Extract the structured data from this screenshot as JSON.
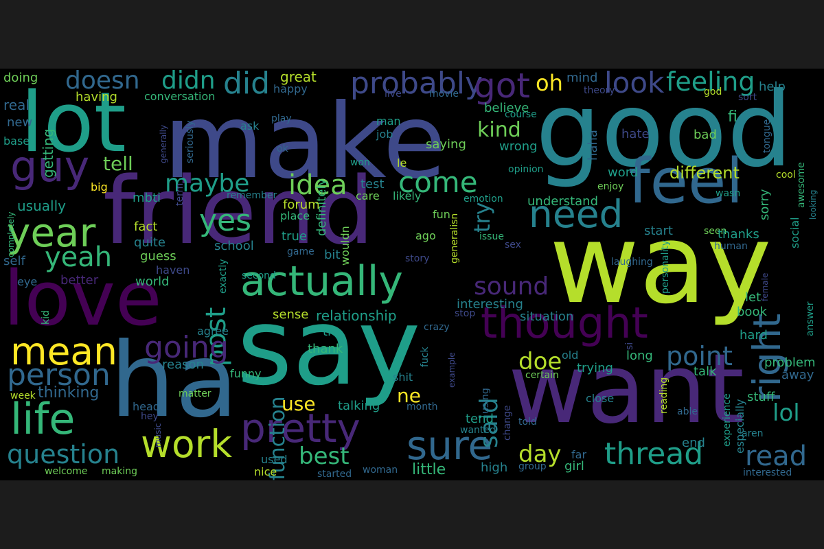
{
  "palette": {
    "page_background": "#1c1c1c",
    "cloud_background": "#000000",
    "colormap": [
      "#440154",
      "#482878",
      "#3e4989",
      "#31688e",
      "#26828e",
      "#1f9e89",
      "#35b779",
      "#6ece58",
      "#b5de2b",
      "#fde725"
    ]
  },
  "words": {
    "make": "make",
    "good": "good",
    "friend": "friend",
    "way": "way",
    "say": "say",
    "want": "want",
    "ha": "ha",
    "lot": "lot",
    "love": "love",
    "feel": "feel",
    "life": "life",
    "thought": "thought",
    "pretty": "pretty",
    "actually": "actually",
    "year": "year",
    "work": "work",
    "sure": "sure",
    "right": "right",
    "mean": "mean",
    "person": "person",
    "need": "need",
    "guy": "guy",
    "thread": "thread",
    "question": "question",
    "probably": "probably",
    "got": "got",
    "look": "look",
    "feeling": "feeling",
    "did": "did",
    "doesn": "doesn",
    "didn": "didn",
    "idea": "idea",
    "come": "come",
    "maybe": "maybe",
    "yes": "yes",
    "post": "post",
    "going": "going",
    "yeah": "yeah",
    "point": "point",
    "sound": "sound",
    "read": "read",
    "said": "said",
    "function": "function",
    "lol": "lol",
    "day": "day",
    "best": "best",
    "kind": "kind",
    "doe": "doe",
    "tell": "tell",
    "use": "use",
    "ne": "ne",
    "oh": "oh",
    "try": "try",
    "different": "different",
    "understand": "understand",
    "interesting": "interesting",
    "relationship": "relationship",
    "usually": "usually",
    "thinking": "thinking",
    "talking": "talking",
    "little": "little",
    "doing": "doing",
    "great": "great",
    "conversation": "conversation",
    "happy": "happy",
    "having": "having",
    "real": "real",
    "new": "new",
    "getting": "getting",
    "based": "based",
    "generally": "generally",
    "seriously": "seriously",
    "ask": "ask",
    "play": "play",
    "live": "live",
    "movie": "movie",
    "mind": "mind",
    "theory": "theory",
    "god": "god",
    "help": "help",
    "sort": "sort",
    "course": "course",
    "believe": "believe",
    "man": "man",
    "job": "job",
    "saying": "saying",
    "wrong": "wrong",
    "hate": "hate",
    "bad": "bad",
    "haha": "haha",
    "tongue": "tongue",
    "definitely": "definitely",
    "ok": "ok",
    "won": "won",
    "le": "le",
    "opinion": "opinion",
    "fi": "fi",
    "word": "word",
    "cool": "cool",
    "awesome": "awesome",
    "looking": "looking",
    "completely": "completely",
    "big": "big",
    "term": "term",
    "remember": "remember",
    "mbti": "mbti",
    "test": "test",
    "care": "care",
    "likely": "likely",
    "emotion": "emotion",
    "enjoy": "enjoy",
    "wasn": "wasn",
    "sorry": "sorry",
    "forum": "forum",
    "fun": "fun",
    "place": "place",
    "fact": "fact",
    "quite": "quite",
    "true": "true",
    "generalisn": "generalisn",
    "ago": "ago",
    "issue": "issue",
    "sex": "sex",
    "start": "start",
    "seen": "seen",
    "thanks": "thanks",
    "social": "social",
    "human": "human",
    "self": "self",
    "school": "school",
    "guess": "guess",
    "haven": "haven",
    "bit": "bit",
    "wouldn": "wouldn",
    "game": "game",
    "story": "story",
    "laughing": "laughing",
    "personality": "personality",
    "eye": "eye",
    "better": "better",
    "world": "world",
    "exactly": "exactly",
    "second": "second",
    "stop": "stop",
    "situation": "situation",
    "let": "let",
    "female": "female",
    "book": "book",
    "kid": "kid",
    "agree": "agree",
    "sense": "sense",
    "ti": "ti",
    "crazy": "crazy",
    "answer": "answer",
    "hard": "hard",
    "si": "si",
    "thank": "thank",
    "reason": "reason",
    "funny": "funny",
    "fuck": "fuck",
    "example": "example",
    "old": "old",
    "trying": "trying",
    "long": "long",
    "problem": "problem",
    "away": "away",
    "certain": "certain",
    "shit": "shit",
    "week": "week",
    "matter": "matter",
    "head": "head",
    "hey": "hey",
    "music": "music",
    "using": "using",
    "month": "month",
    "change": "change",
    "told": "told",
    "tend": "tend",
    "wanted": "wanted",
    "close": "close",
    "talk": "talk",
    "reading": "reading",
    "experience": "experience",
    "especially": "especially",
    "end": "end",
    "able": "able",
    "aren": "aren",
    "stuff": "stuff",
    "welcome": "welcome",
    "making": "making",
    "used": "used",
    "nice": "nice",
    "started": "started",
    "woman": "woman",
    "high": "high",
    "group": "group",
    "girl": "girl",
    "far": "far",
    "interested": "interested"
  }
}
